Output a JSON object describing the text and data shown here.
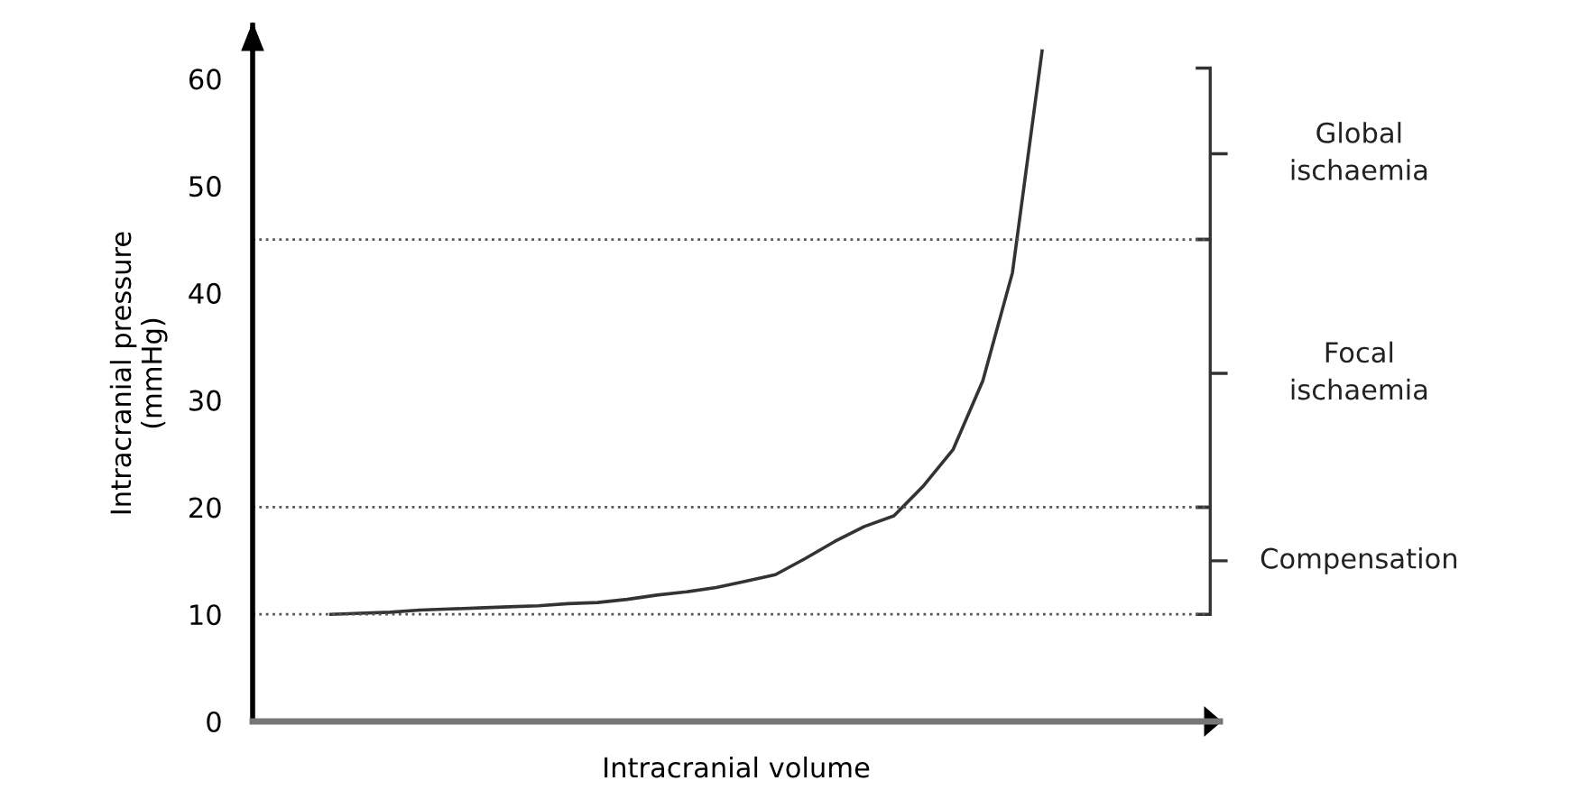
{
  "chart_data": {
    "type": "line",
    "xlabel": "Intracranial volume",
    "ylabel": "Intracranial pressure\n(mmHg)",
    "categories": [
      null,
      null,
      null,
      null,
      null,
      null,
      null,
      null,
      null,
      null,
      null,
      null,
      null,
      null,
      null,
      null,
      null,
      null,
      null,
      null,
      null,
      null,
      null,
      null,
      null
    ],
    "series": [
      {
        "color": "#333333",
        "values": [
          10.0,
          10.1,
          10.2,
          10.4,
          10.5,
          10.6,
          10.7,
          10.8,
          11.0,
          11.1,
          11.4,
          11.8,
          12.1,
          12.5,
          13.1,
          13.7,
          15.2,
          16.8,
          18.2,
          19.2,
          22.0,
          25.4,
          31.8,
          41.9,
          62.6
        ]
      }
    ],
    "ylim": [
      0,
      65
    ],
    "yticks": [
      0,
      10,
      20,
      30,
      40,
      50,
      60
    ],
    "tick_labels": "y",
    "ref_lines": [
      {
        "axis": "y",
        "value": 10,
        "line_style": "dotted",
        "color": "#555555"
      },
      {
        "axis": "y",
        "value": 20,
        "line_style": "dotted",
        "color": "#555555"
      },
      {
        "axis": "y",
        "value": 45,
        "line_style": "dotted",
        "color": "#555555"
      }
    ],
    "annotations": [
      "Compensation",
      "Focal\nischaemia",
      "Global\nischaemia"
    ],
    "grid": false,
    "legend": false,
    "line_style": "solid",
    "marker": "none"
  }
}
